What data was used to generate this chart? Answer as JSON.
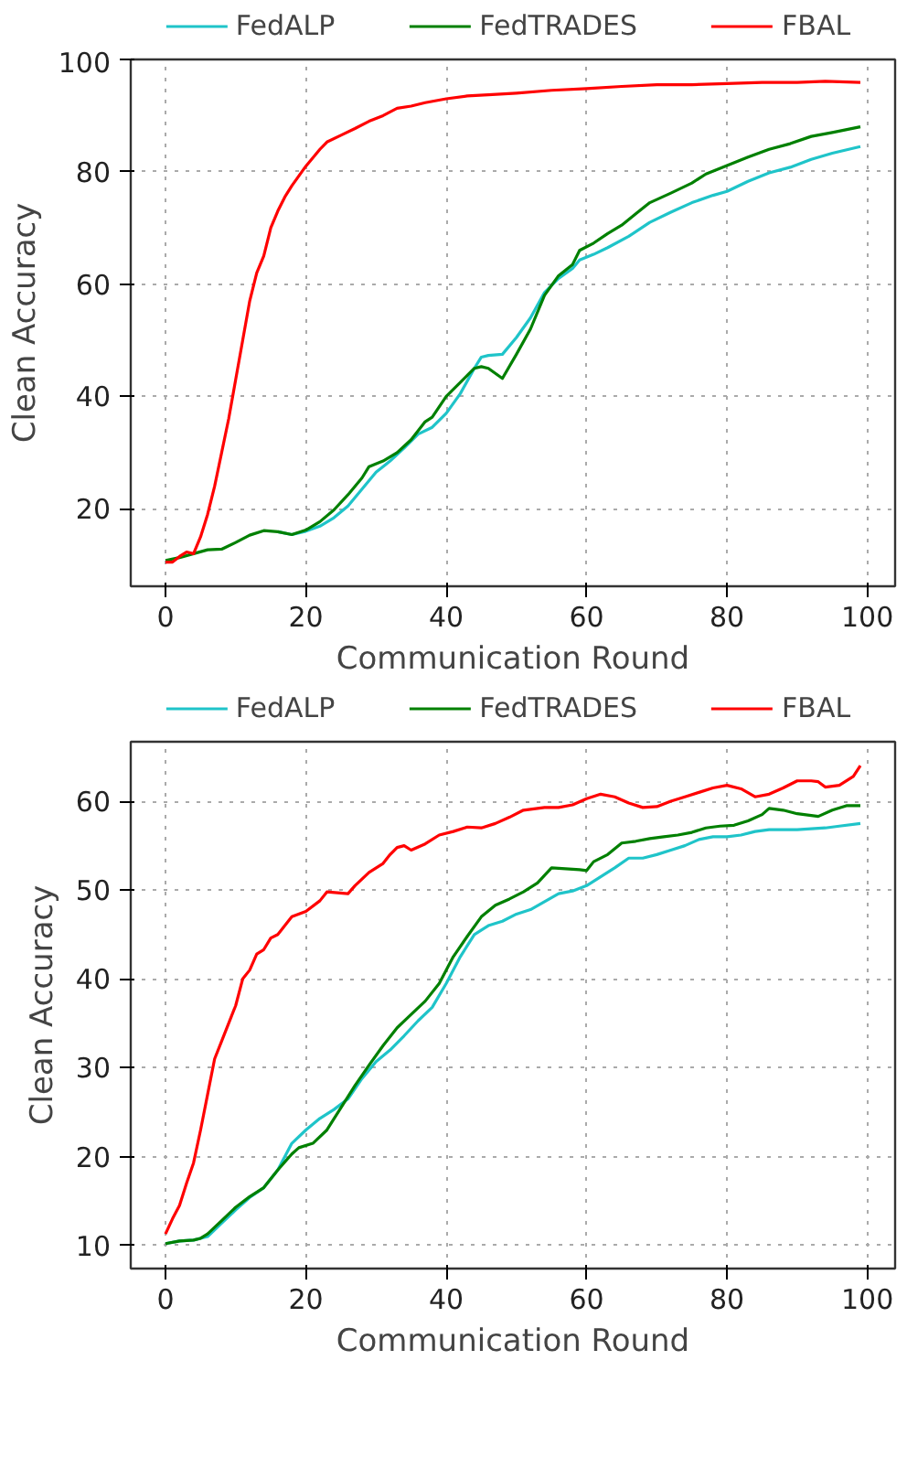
{
  "chart_data": [
    {
      "type": "line",
      "xlabel": "Communication Round",
      "ylabel": "Clean Accuracy",
      "xlim": [
        -4.95,
        103.95
      ],
      "ylim": [
        6.2,
        100
      ],
      "xticks": [
        0,
        20,
        40,
        60,
        80,
        100
      ],
      "yticks": [
        20,
        40,
        60,
        80,
        100
      ],
      "grid": true,
      "legend": "top",
      "line_style": "solid",
      "series": [
        {
          "name": "FedALP",
          "color": "#1fc4c9",
          "x": [
            16,
            18,
            20,
            22,
            24,
            26,
            28,
            30,
            32,
            34,
            36,
            38,
            40,
            42,
            44,
            45,
            46,
            48,
            50,
            52,
            54,
            56,
            58,
            59,
            61,
            63,
            66,
            69,
            72,
            75,
            78,
            80,
            83,
            86,
            89,
            92,
            95,
            99
          ],
          "values": [
            15.9,
            15.4,
            16,
            16.9,
            18.4,
            20.5,
            23.5,
            26.5,
            28.5,
            30.8,
            33.3,
            34.5,
            37,
            40.5,
            45,
            47,
            47.3,
            47.5,
            50.5,
            54,
            58.5,
            61,
            62.8,
            64.3,
            65.3,
            66.5,
            68.5,
            71,
            72.8,
            74.5,
            75.8,
            76.5,
            78.3,
            79.8,
            80.8,
            82.2,
            83.3,
            84.5
          ]
        },
        {
          "name": "FedTRADES",
          "color": "#008000",
          "x": [
            0,
            2,
            4,
            6,
            8,
            10,
            12,
            14,
            16,
            18,
            20,
            22,
            24,
            26,
            28,
            29,
            31,
            33,
            35,
            37,
            38,
            40,
            42,
            44,
            45,
            46,
            48,
            50,
            52,
            54,
            56,
            58,
            59,
            61,
            63,
            65,
            67,
            69,
            72,
            75,
            77,
            80,
            83,
            86,
            89,
            92,
            95,
            99
          ],
          "values": [
            10.8,
            11.3,
            12,
            12.7,
            12.8,
            14,
            15.3,
            16.1,
            15.9,
            15.4,
            16.2,
            17.7,
            19.8,
            22.5,
            25.5,
            27.5,
            28.5,
            30,
            32.3,
            35.5,
            36.3,
            40,
            42.5,
            45,
            45.3,
            45,
            43.2,
            47.5,
            52,
            58,
            61.5,
            63.5,
            66,
            67.3,
            69,
            70.5,
            72.5,
            74.5,
            76.2,
            78,
            79.6,
            81.1,
            82.6,
            84,
            85,
            86.3,
            87,
            88
          ]
        },
        {
          "name": "FBAL",
          "color": "#ff0000",
          "x": [
            0,
            1,
            2,
            3,
            4,
            5,
            6,
            7,
            8,
            9,
            10,
            11,
            12,
            13,
            14,
            15,
            16,
            17,
            18,
            20,
            22,
            23,
            25,
            27,
            29,
            31,
            33,
            35,
            37,
            40,
            43,
            46,
            50,
            55,
            60,
            65,
            70,
            75,
            80,
            85,
            90,
            94,
            99
          ],
          "values": [
            10.5,
            10.5,
            11.5,
            12.3,
            12,
            15,
            19,
            24,
            30,
            36,
            43,
            50,
            57,
            62,
            65,
            70,
            73,
            75.5,
            77.5,
            81,
            84,
            85.3,
            86.5,
            87.7,
            89,
            90,
            91.3,
            91.7,
            92.3,
            93,
            93.5,
            93.7,
            94,
            94.5,
            94.8,
            95.2,
            95.5,
            95.5,
            95.7,
            95.9,
            95.9,
            96.1,
            95.9
          ]
        }
      ]
    },
    {
      "type": "line",
      "xlabel": "Communication Round",
      "ylabel": "Clean Accuracy",
      "xlim": [
        -4.95,
        103.95
      ],
      "ylim": [
        7.4,
        66.7
      ],
      "xticks": [
        0,
        20,
        40,
        60,
        80,
        100
      ],
      "yticks": [
        10,
        20,
        30,
        40,
        50,
        60
      ],
      "grid": true,
      "legend": "top",
      "line_style": "solid",
      "series": [
        {
          "name": "FedALP",
          "color": "#1fc4c9",
          "x": [
            0,
            2,
            4,
            6,
            8,
            10,
            12,
            14,
            16,
            18,
            20,
            22,
            24,
            26,
            28,
            30,
            32,
            34,
            36,
            38,
            40,
            42,
            44,
            46,
            48,
            50,
            52,
            54,
            56,
            58,
            60,
            62,
            64,
            66,
            68,
            70,
            72,
            74,
            76,
            78,
            80,
            82,
            84,
            86,
            88,
            90,
            92,
            94,
            96,
            99
          ],
          "values": [
            10.2,
            10.5,
            10.6,
            11,
            12.5,
            14,
            15.4,
            16.5,
            18.5,
            21.5,
            23,
            24.3,
            25.3,
            26.5,
            28.8,
            30.7,
            32,
            33.6,
            35.3,
            36.8,
            39.5,
            42.5,
            45,
            46,
            46.5,
            47.3,
            47.8,
            48.7,
            49.6,
            49.9,
            50.5,
            51.5,
            52.5,
            53.6,
            53.6,
            54,
            54.5,
            55,
            55.7,
            56,
            56,
            56.2,
            56.6,
            56.8,
            56.8,
            56.8,
            56.9,
            57,
            57.2,
            57.5
          ]
        },
        {
          "name": "FedTRADES",
          "color": "#008000",
          "x": [
            0,
            2,
            4,
            5,
            6,
            8,
            10,
            12,
            14,
            16,
            18,
            19,
            21,
            23,
            25,
            27,
            29,
            31,
            33,
            35,
            37,
            39,
            41,
            43,
            45,
            47,
            49,
            51,
            53,
            55,
            57,
            59,
            60,
            61,
            63,
            65,
            67,
            69,
            71,
            73,
            75,
            77,
            79,
            81,
            83,
            85,
            86,
            88,
            90,
            93,
            95,
            97,
            99
          ],
          "values": [
            10.2,
            10.5,
            10.6,
            10.8,
            11.3,
            12.8,
            14.3,
            15.5,
            16.5,
            18.5,
            20.3,
            21,
            21.5,
            23,
            25.5,
            28,
            30.3,
            32.5,
            34.5,
            36,
            37.5,
            39.5,
            42.5,
            44.8,
            47,
            48.3,
            49,
            49.8,
            50.8,
            52.5,
            52.4,
            52.3,
            52.2,
            53.2,
            54,
            55.3,
            55.5,
            55.8,
            56,
            56.2,
            56.5,
            57,
            57.2,
            57.3,
            57.8,
            58.5,
            59.2,
            59,
            58.6,
            58.3,
            59,
            59.5,
            59.5
          ]
        },
        {
          "name": "FBAL",
          "color": "#ff0000",
          "x": [
            0,
            1,
            2,
            3,
            4,
            5,
            6,
            7,
            8,
            9,
            10,
            11,
            12,
            13,
            14,
            15,
            16,
            17,
            18,
            20,
            22,
            23,
            26,
            27,
            29,
            31,
            32,
            33,
            34,
            35,
            37,
            39,
            41,
            43,
            45,
            47,
            49,
            51,
            54,
            56,
            58,
            60,
            62,
            64,
            66,
            68,
            70,
            72,
            74,
            76,
            78,
            80,
            82,
            84,
            86,
            88,
            90,
            92,
            93,
            94,
            96,
            98,
            99
          ],
          "values": [
            11.3,
            13,
            14.5,
            17,
            19.3,
            23,
            27,
            31,
            33,
            35,
            37,
            40,
            41,
            42.8,
            43.3,
            44.6,
            45,
            46,
            47,
            47.6,
            48.8,
            49.8,
            49.6,
            50.5,
            52,
            53,
            54,
            54.8,
            55,
            54.5,
            55.2,
            56.2,
            56.6,
            57.1,
            57,
            57.5,
            58.2,
            59,
            59.3,
            59.3,
            59.6,
            60.3,
            60.8,
            60.5,
            59.8,
            59.3,
            59.4,
            60,
            60.5,
            61,
            61.5,
            61.8,
            61.4,
            60.5,
            60.8,
            61.5,
            62.3,
            62.3,
            62.2,
            61.6,
            61.8,
            62.8,
            64
          ]
        }
      ]
    }
  ]
}
